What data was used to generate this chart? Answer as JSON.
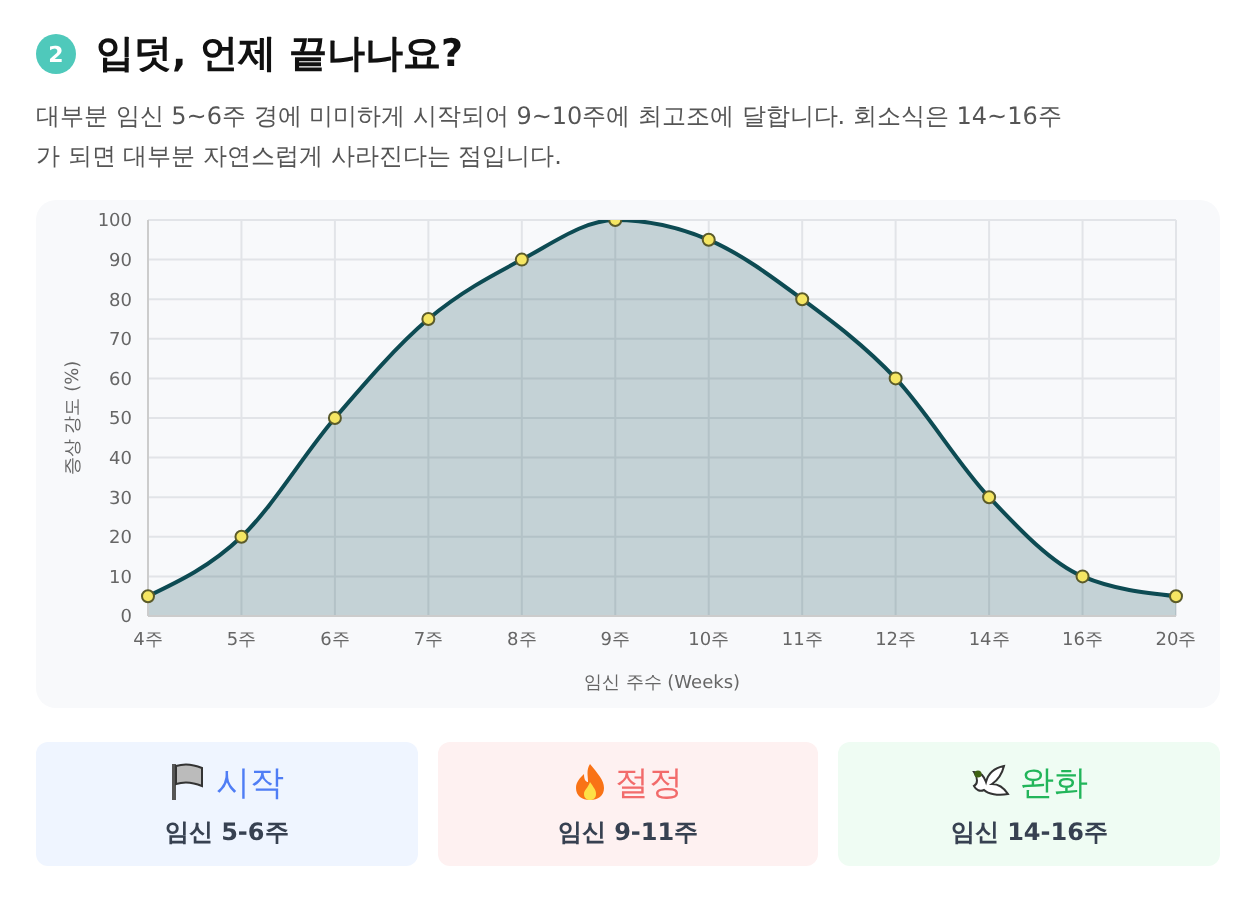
{
  "chart_data": [
    {
      "type": "area",
      "title": "입덧, 언제 끝나나요?",
      "subtitle": "대부분 임신 5~6주 경에 미미하게 시작되어 9~10주에 최고조에 달합니다. 회소식은 14~16주가 되면 대부분 자연스럽게 사라진다는 점입니다.",
      "annotations": [
        "2"
      ],
      "xlabel": "임신 주수 (Weeks)",
      "ylabel": "증상 강도 (%)",
      "categories": [
        "4주",
        "5주",
        "6주",
        "7주",
        "8주",
        "9주",
        "10주",
        "11주",
        "12주",
        "14주",
        "16주",
        "20주"
      ],
      "series": [
        {
          "color": "#0d4b53",
          "values": [
            5,
            20,
            50,
            75,
            90,
            100,
            95,
            80,
            60,
            30,
            10,
            5
          ]
        }
      ],
      "ylim": [
        0,
        100
      ],
      "yticks": [
        0,
        10,
        20,
        30,
        40,
        50,
        60,
        70,
        80,
        90,
        100
      ],
      "grid": true,
      "marker": "circle",
      "line_style": "solid"
    },
    {
      "type": "other",
      "annotations": [
        "시작",
        "임신 5-6주",
        "절정",
        "임신 9-11주",
        "완화",
        "임신 14-16주"
      ],
      "colors": [
        "#4f7df5",
        "#f26b6b",
        "#22b55a"
      ]
    }
  ]
}
